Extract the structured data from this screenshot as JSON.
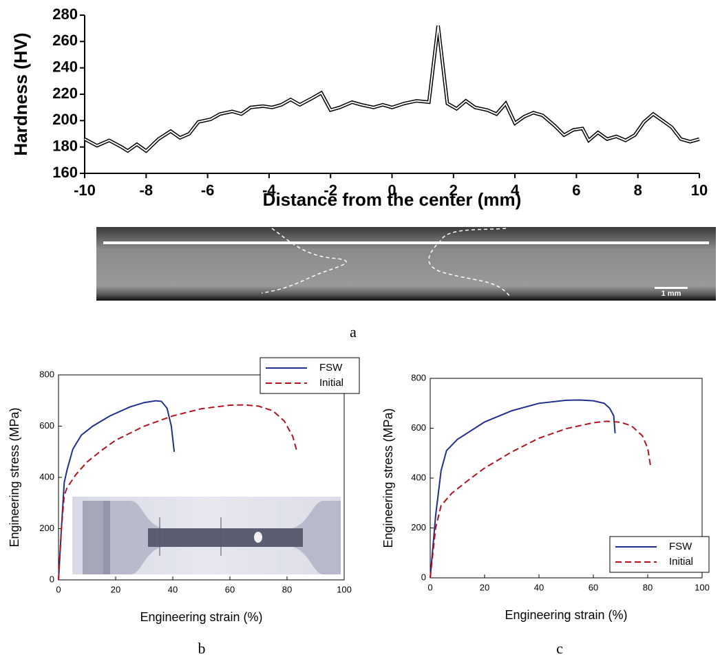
{
  "chart_data": [
    {
      "type": "line",
      "caption": "a",
      "xlabel": "Distance from the center (mm)",
      "ylabel": "Hardness (HV)",
      "x": [
        -10,
        -9.6,
        -9.2,
        -8.8,
        -8.6,
        -8.3,
        -8,
        -7.6,
        -7.2,
        -6.9,
        -6.6,
        -6.3,
        -5.9,
        -5.6,
        -5.2,
        -4.9,
        -4.6,
        -4.2,
        -3.9,
        -3.6,
        -3.3,
        -3,
        -2.6,
        -2.3,
        -2,
        -1.7,
        -1.3,
        -1,
        -0.6,
        -0.3,
        0,
        0.4,
        0.8,
        1.2,
        1.5,
        1.8,
        2.1,
        2.4,
        2.7,
        3.1,
        3.4,
        3.7,
        4,
        4.3,
        4.6,
        4.9,
        5.3,
        5.6,
        5.9,
        6.2,
        6.4,
        6.7,
        7,
        7.3,
        7.6,
        7.9,
        8.2,
        8.5,
        8.8,
        9.1,
        9.4,
        9.7,
        10
      ],
      "values": [
        186,
        181,
        185,
        180,
        177,
        182,
        177,
        186,
        192,
        187,
        190,
        199,
        201,
        205,
        207,
        205,
        210,
        211,
        210,
        212,
        216,
        212,
        217,
        221,
        208,
        210,
        214,
        212,
        210,
        212,
        210,
        213,
        215,
        214,
        272,
        213,
        209,
        215,
        210,
        208,
        205,
        213,
        198,
        203,
        206,
        204,
        196,
        189,
        193,
        194,
        185,
        191,
        186,
        188,
        185,
        189,
        199,
        205,
        200,
        195,
        186,
        184,
        186
      ],
      "color": "#000000",
      "line_style": "double",
      "xlim": [
        -10,
        10
      ],
      "xticks": [
        -10,
        -8,
        -6,
        -4,
        -2,
        0,
        2,
        4,
        6,
        8,
        10
      ],
      "ylim": [
        160,
        280
      ],
      "yticks": [
        160,
        180,
        200,
        220,
        240,
        260,
        280
      ],
      "scale_bar_label": "1 mm"
    },
    {
      "type": "line",
      "caption": "b",
      "xlabel": "Engineering strain (%)",
      "ylabel": "Engineering stress (MPa)",
      "series": [
        {
          "name": "FSW",
          "color": "#1f2e8f",
          "line_style": "solid",
          "x": [
            0,
            1,
            2,
            3,
            5,
            8,
            12,
            18,
            25,
            30,
            34,
            36,
            38,
            39.5,
            40.5
          ],
          "values": [
            0,
            200,
            380,
            430,
            510,
            565,
            600,
            640,
            675,
            692,
            699,
            697,
            670,
            600,
            500
          ]
        },
        {
          "name": "Initial",
          "color": "#b3121d",
          "line_style": "dashed",
          "x": [
            0,
            1,
            2,
            3,
            6,
            10,
            15,
            20,
            30,
            40,
            50,
            60,
            65,
            70,
            75,
            79,
            82,
            83.5
          ],
          "values": [
            0,
            200,
            330,
            360,
            410,
            460,
            505,
            545,
            600,
            640,
            668,
            682,
            683,
            678,
            660,
            620,
            560,
            500
          ]
        }
      ],
      "xlim": [
        0,
        100
      ],
      "xticks": [
        0,
        20,
        40,
        60,
        80,
        100
      ],
      "ylim": [
        0,
        800
      ],
      "yticks": [
        0,
        200,
        400,
        600,
        800
      ],
      "legend": "upper right"
    },
    {
      "type": "line",
      "caption": "c",
      "xlabel": "Engineering strain (%)",
      "ylabel": "Engineering stress (MPa)",
      "series": [
        {
          "name": "FSW",
          "color": "#1f2e8f",
          "line_style": "solid",
          "x": [
            0,
            2,
            4,
            6,
            10,
            20,
            30,
            40,
            50,
            55,
            60,
            64,
            66,
            67.5,
            68
          ],
          "values": [
            0,
            250,
            430,
            510,
            555,
            625,
            670,
            700,
            712,
            713,
            710,
            700,
            680,
            650,
            580
          ]
        },
        {
          "name": "Initial",
          "color": "#b3121d",
          "line_style": "dashed",
          "x": [
            0,
            2,
            4,
            8,
            15,
            20,
            30,
            40,
            50,
            60,
            65,
            70,
            74,
            78,
            80,
            81
          ],
          "values": [
            0,
            200,
            290,
            340,
            400,
            440,
            505,
            560,
            598,
            622,
            628,
            624,
            610,
            570,
            520,
            450
          ]
        }
      ],
      "xlim": [
        0,
        100
      ],
      "xticks": [
        0,
        20,
        40,
        60,
        80,
        100
      ],
      "ylim": [
        0,
        800
      ],
      "yticks": [
        0,
        200,
        400,
        600,
        800
      ],
      "legend": "lower right"
    }
  ]
}
